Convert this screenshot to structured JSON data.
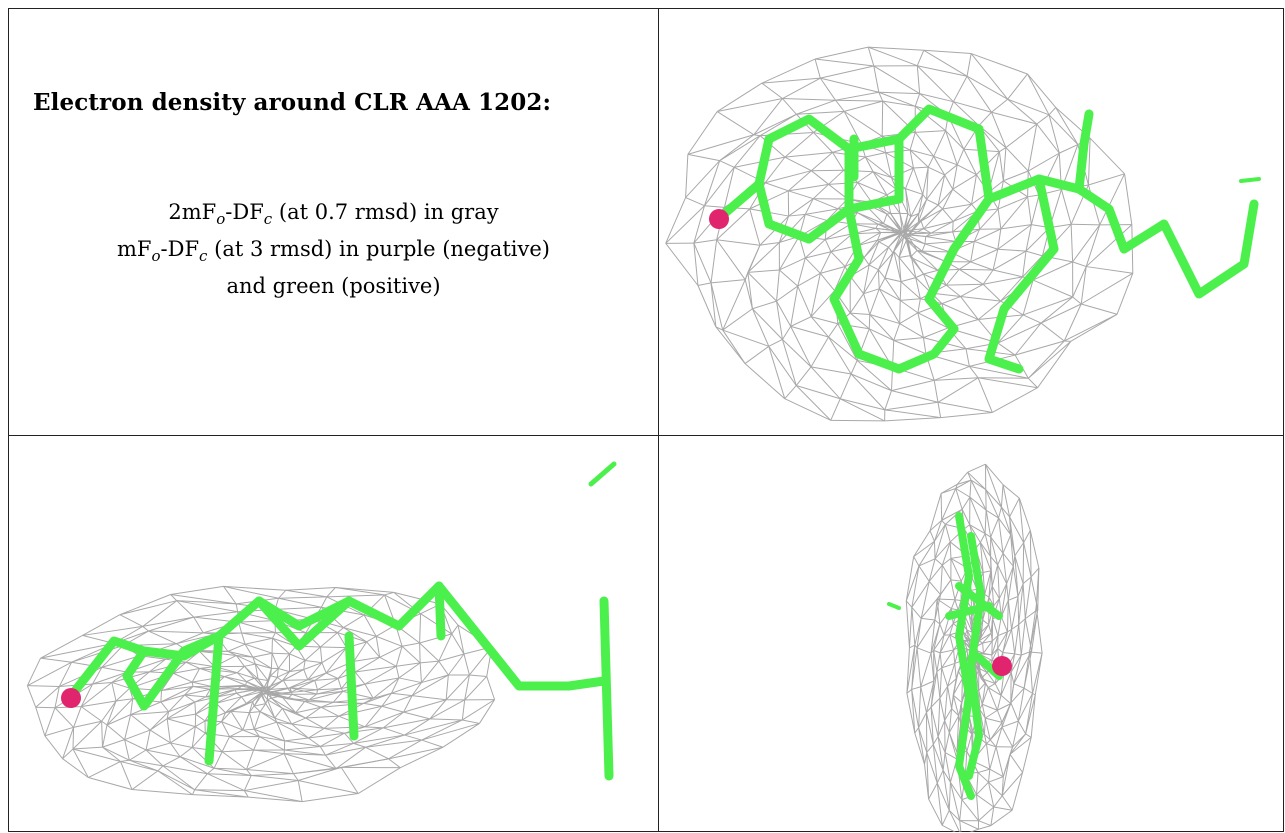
{
  "heading": "Electron density around CLR AAA 1202:",
  "legend": {
    "line1": "2mFₒ-DF꜀ (at 0.7 rmsd) in gray",
    "line1_main": "2mF",
    "line1_sub1": "o",
    "line1_mid": "-DF",
    "line1_sub2": "c",
    "line1_rest": " (at 0.7 rmsd) in gray",
    "line2_main": "mF",
    "line2_sub1": "o",
    "line2_mid": "-DF",
    "line2_sub2": "c",
    "line2_rest": " (at 3 rmsd) in purple (negative)",
    "line3": "and green (positive)"
  },
  "colors": {
    "mesh": "#9a9a9a",
    "carbon": "#4cf04c",
    "oxygen": "#e0256e",
    "border": "#222222"
  },
  "views": [
    "density-view-top",
    "density-view-side",
    "density-view-end"
  ]
}
